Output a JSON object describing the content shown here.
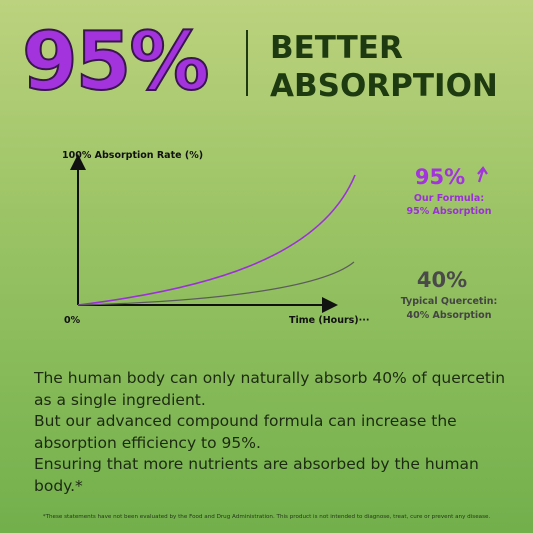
{
  "header": {
    "big_number": "95%",
    "title": [
      "BETTER",
      "ABSORPTION"
    ]
  },
  "chart": {
    "y_label": "100% Absorption Rate (%)",
    "origin": "0%",
    "x_label": "Time (Hours)···"
  },
  "callouts": [
    {
      "value": "95%",
      "lines": [
        "Our Formula:",
        "95% Absorption"
      ]
    },
    {
      "value": "40%",
      "lines": [
        "Typical Quercetin:",
        "40% Absorption"
      ]
    }
  ],
  "body": [
    "The human body can only naturally absorb 40% of quercetin as a single ingredient.",
    "But our advanced compound formula can increase the absorption efficiency to 95%.",
    "Ensuring that more nutrients are absorbed by the human body.*"
  ],
  "footnote": "*These statements have not been evaluated by the Food and Drug Administration. This product is not intended to diagnose, treat, cure or prevent any disease."
}
